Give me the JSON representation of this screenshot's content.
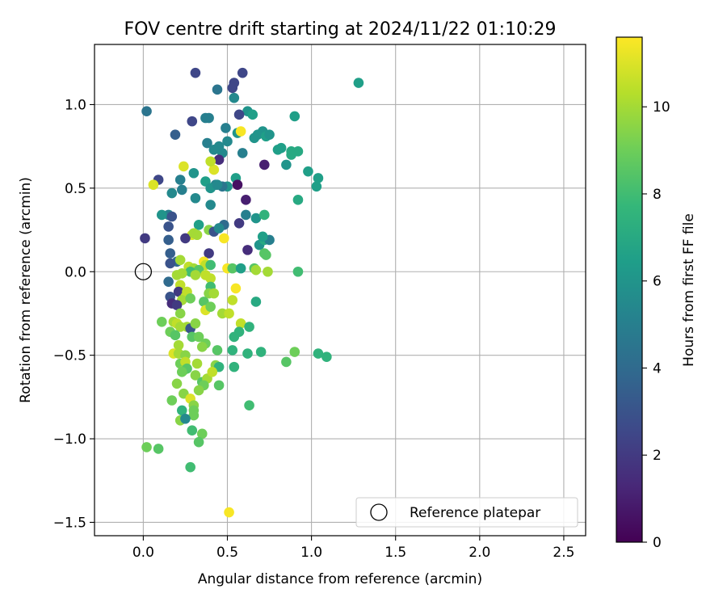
{
  "chart_data": {
    "type": "scatter",
    "title": "FOV centre drift starting at 2024/11/22 01:10:29",
    "xlabel": "Angular distance from reference (arcmin)",
    "ylabel": "Rotation from reference (arcmin)",
    "xlim": [
      -0.29,
      2.63
    ],
    "ylim": [
      -1.58,
      1.36
    ],
    "xticks": [
      0.0,
      0.5,
      1.0,
      1.5,
      2.0,
      2.5
    ],
    "xtick_labels": [
      "0.0",
      "0.5",
      "1.0",
      "1.5",
      "2.0",
      "2.5"
    ],
    "yticks": [
      -1.5,
      -1.0,
      -0.5,
      0.0,
      0.5,
      1.0
    ],
    "ytick_labels": [
      "−1.5",
      "−1.0",
      "−0.5",
      "0.0",
      "0.5",
      "1.0"
    ],
    "grid": true,
    "colormap": "viridis",
    "colorbar": {
      "label": "Hours from first FF file",
      "range": [
        0,
        11.6
      ],
      "ticks": [
        0,
        2,
        4,
        6,
        8,
        10
      ],
      "tick_labels": [
        "0",
        "2",
        "4",
        "6",
        "8",
        "10"
      ],
      "colors": [
        "#440154",
        "#482878",
        "#3e4989",
        "#31688e",
        "#26828e",
        "#1f9e89",
        "#35b779",
        "#6ece58",
        "#b5de2b",
        "#fde725"
      ]
    },
    "legend": {
      "label": "Reference platepar",
      "placement": "lower-right"
    },
    "reference_point": {
      "x": 0.0,
      "y": 0.0
    },
    "points": [
      [
        0.31,
        1.19,
        2.5
      ],
      [
        0.59,
        1.19,
        2.5
      ],
      [
        0.54,
        1.13,
        2.5
      ],
      [
        0.53,
        1.1,
        2.5
      ],
      [
        0.44,
        1.09,
        4.5
      ],
      [
        1.28,
        1.13,
        6.5
      ],
      [
        0.54,
        1.04,
        5.5
      ],
      [
        0.02,
        0.96,
        4.5
      ],
      [
        0.62,
        0.96,
        6.0
      ],
      [
        0.65,
        0.94,
        6.5
      ],
      [
        0.57,
        0.94,
        2.5
      ],
      [
        0.37,
        0.92,
        5.0
      ],
      [
        0.39,
        0.92,
        5.0
      ],
      [
        0.29,
        0.9,
        2.5
      ],
      [
        0.9,
        0.93,
        6.5
      ],
      [
        0.49,
        0.86,
        5.0
      ],
      [
        0.19,
        0.82,
        3.5
      ],
      [
        0.56,
        0.83,
        6.0
      ],
      [
        0.71,
        0.84,
        6.0
      ],
      [
        0.68,
        0.82,
        6.0
      ],
      [
        0.73,
        0.81,
        6.5
      ],
      [
        0.75,
        0.82,
        6.0
      ],
      [
        0.66,
        0.8,
        6.0
      ],
      [
        0.58,
        0.84,
        11.5
      ],
      [
        0.38,
        0.77,
        5.0
      ],
      [
        0.45,
        0.75,
        5.5
      ],
      [
        0.5,
        0.78,
        5.5
      ],
      [
        0.42,
        0.73,
        5.5
      ],
      [
        0.47,
        0.71,
        5.5
      ],
      [
        0.59,
        0.71,
        5.0
      ],
      [
        0.8,
        0.73,
        6.5
      ],
      [
        0.82,
        0.74,
        6.5
      ],
      [
        0.88,
        0.72,
        7.0
      ],
      [
        0.92,
        0.72,
        7.0
      ],
      [
        0.88,
        0.7,
        7.0
      ],
      [
        0.85,
        0.64,
        6.0
      ],
      [
        0.72,
        0.64,
        1.0
      ],
      [
        0.45,
        0.67,
        1.5
      ],
      [
        0.42,
        0.61,
        11.0
      ],
      [
        0.4,
        0.66,
        10.5
      ],
      [
        0.24,
        0.63,
        11.0
      ],
      [
        0.3,
        0.59,
        6.0
      ],
      [
        0.22,
        0.55,
        5.0
      ],
      [
        0.09,
        0.55,
        2.5
      ],
      [
        0.06,
        0.52,
        11.0
      ],
      [
        0.37,
        0.54,
        6.5
      ],
      [
        0.43,
        0.52,
        5.0
      ],
      [
        0.5,
        0.51,
        6.0
      ],
      [
        0.55,
        0.56,
        6.5
      ],
      [
        0.56,
        0.52,
        0.5
      ],
      [
        0.23,
        0.49,
        5.0
      ],
      [
        0.17,
        0.47,
        5.5
      ],
      [
        0.4,
        0.5,
        6.0
      ],
      [
        0.47,
        0.51,
        4.5
      ],
      [
        0.44,
        0.52,
        5.5
      ],
      [
        0.98,
        0.6,
        6.5
      ],
      [
        1.04,
        0.56,
        6.5
      ],
      [
        1.03,
        0.51,
        6.5
      ],
      [
        0.31,
        0.44,
        5.5
      ],
      [
        0.4,
        0.4,
        5.5
      ],
      [
        0.61,
        0.43,
        1.0
      ],
      [
        0.92,
        0.43,
        7.0
      ],
      [
        0.15,
        0.34,
        5.0
      ],
      [
        0.11,
        0.34,
        6.0
      ],
      [
        0.17,
        0.33,
        3.0
      ],
      [
        0.61,
        0.34,
        5.0
      ],
      [
        0.67,
        0.32,
        6.0
      ],
      [
        0.72,
        0.34,
        7.5
      ],
      [
        0.33,
        0.28,
        6.5
      ],
      [
        0.48,
        0.28,
        4.0
      ],
      [
        0.15,
        0.27,
        3.0
      ],
      [
        0.39,
        0.25,
        9.5
      ],
      [
        0.29,
        0.22,
        11.0
      ],
      [
        0.25,
        0.2,
        2.0
      ],
      [
        0.01,
        0.2,
        2.0
      ],
      [
        0.15,
        0.19,
        3.5
      ],
      [
        0.48,
        0.2,
        11.5
      ],
      [
        0.3,
        0.23,
        10.0
      ],
      [
        0.32,
        0.22,
        10.0
      ],
      [
        0.42,
        0.24,
        3.0
      ],
      [
        0.45,
        0.26,
        5.5
      ],
      [
        0.57,
        0.29,
        2.0
      ],
      [
        0.62,
        0.13,
        1.5
      ],
      [
        0.69,
        0.16,
        6.0
      ],
      [
        0.72,
        0.19,
        7.0
      ],
      [
        0.75,
        0.19,
        5.0
      ],
      [
        0.71,
        0.21,
        6.5
      ],
      [
        0.72,
        0.11,
        8.5
      ],
      [
        0.73,
        0.1,
        8.5
      ],
      [
        0.16,
        0.11,
        3.5
      ],
      [
        0.2,
        0.06,
        4.0
      ],
      [
        0.39,
        0.11,
        2.0
      ],
      [
        0.36,
        0.06,
        11.5
      ],
      [
        0.37,
        0.04,
        10.5
      ],
      [
        0.4,
        0.04,
        8.0
      ],
      [
        0.22,
        0.07,
        10.0
      ],
      [
        0.27,
        0.03,
        10.5
      ],
      [
        0.16,
        0.05,
        3.0
      ],
      [
        0.3,
        0.02,
        10.0
      ],
      [
        0.33,
        0.01,
        8.5
      ],
      [
        0.28,
        0.0,
        8.0
      ],
      [
        0.5,
        0.02,
        11.5
      ],
      [
        0.53,
        0.02,
        8.5
      ],
      [
        0.58,
        0.02,
        6.5
      ],
      [
        0.66,
        0.02,
        8.5
      ],
      [
        0.67,
        0.01,
        10.0
      ],
      [
        0.74,
        0.0,
        10.0
      ],
      [
        0.92,
        0.0,
        8.0
      ],
      [
        0.2,
        -0.02,
        10.0
      ],
      [
        0.23,
        -0.01,
        10.0
      ],
      [
        0.31,
        -0.02,
        10.0
      ],
      [
        0.37,
        -0.02,
        10.5
      ],
      [
        0.4,
        -0.04,
        10.5
      ],
      [
        0.15,
        -0.06,
        4.0
      ],
      [
        0.22,
        -0.08,
        10.5
      ],
      [
        0.4,
        -0.09,
        8.0
      ],
      [
        0.55,
        -0.1,
        11.5
      ],
      [
        0.21,
        -0.12,
        2.0
      ],
      [
        0.26,
        -0.12,
        10.5
      ],
      [
        0.39,
        -0.13,
        9.5
      ],
      [
        0.42,
        -0.13,
        10.0
      ],
      [
        0.16,
        -0.15,
        3.0
      ],
      [
        0.25,
        -0.15,
        10.5
      ],
      [
        0.23,
        -0.17,
        10.0
      ],
      [
        0.28,
        -0.16,
        9.0
      ],
      [
        0.36,
        -0.18,
        8.5
      ],
      [
        0.53,
        -0.17,
        10.5
      ],
      [
        0.67,
        -0.18,
        7.0
      ],
      [
        0.17,
        -0.19,
        1.5
      ],
      [
        0.2,
        -0.2,
        2.0
      ],
      [
        0.37,
        -0.23,
        11.0
      ],
      [
        0.47,
        -0.25,
        10.0
      ],
      [
        0.51,
        -0.25,
        10.5
      ],
      [
        0.4,
        -0.21,
        9.0
      ],
      [
        0.22,
        -0.25,
        9.5
      ],
      [
        0.11,
        -0.3,
        9.0
      ],
      [
        0.18,
        -0.3,
        10.0
      ],
      [
        0.2,
        -0.31,
        10.5
      ],
      [
        0.22,
        -0.33,
        10.0
      ],
      [
        0.26,
        -0.33,
        10.0
      ],
      [
        0.28,
        -0.34,
        3.0
      ],
      [
        0.31,
        -0.31,
        9.5
      ],
      [
        0.58,
        -0.31,
        10.5
      ],
      [
        0.57,
        -0.36,
        7.5
      ],
      [
        0.63,
        -0.33,
        7.5
      ],
      [
        0.54,
        -0.39,
        7.5
      ],
      [
        0.16,
        -0.36,
        9.0
      ],
      [
        0.19,
        -0.38,
        8.5
      ],
      [
        0.29,
        -0.39,
        8.5
      ],
      [
        0.33,
        -0.39,
        9.0
      ],
      [
        0.37,
        -0.43,
        9.0
      ],
      [
        0.35,
        -0.45,
        9.5
      ],
      [
        0.44,
        -0.47,
        8.5
      ],
      [
        0.21,
        -0.44,
        10.0
      ],
      [
        0.53,
        -0.47,
        7.5
      ],
      [
        0.62,
        -0.49,
        7.5
      ],
      [
        0.7,
        -0.48,
        7.5
      ],
      [
        0.18,
        -0.49,
        11.0
      ],
      [
        0.21,
        -0.49,
        10.0
      ],
      [
        0.25,
        -0.5,
        9.5
      ],
      [
        0.9,
        -0.48,
        9.0
      ],
      [
        1.04,
        -0.49,
        7.5
      ],
      [
        1.09,
        -0.51,
        7.5
      ],
      [
        0.85,
        -0.54,
        8.5
      ],
      [
        0.22,
        -0.55,
        9.0
      ],
      [
        0.25,
        -0.54,
        10.5
      ],
      [
        0.32,
        -0.55,
        10.0
      ],
      [
        0.43,
        -0.56,
        9.5
      ],
      [
        0.45,
        -0.57,
        7.5
      ],
      [
        0.54,
        -0.57,
        7.5
      ],
      [
        0.24,
        -0.59,
        9.5
      ],
      [
        0.26,
        -0.58,
        8.5
      ],
      [
        0.23,
        -0.6,
        9.0
      ],
      [
        0.31,
        -0.62,
        9.5
      ],
      [
        0.35,
        -0.66,
        8.5
      ],
      [
        0.38,
        -0.64,
        10.0
      ],
      [
        0.41,
        -0.6,
        10.5
      ],
      [
        0.2,
        -0.67,
        9.5
      ],
      [
        0.45,
        -0.68,
        8.5
      ],
      [
        0.36,
        -0.68,
        9.0
      ],
      [
        0.33,
        -0.71,
        9.5
      ],
      [
        0.24,
        -0.73,
        9.5
      ],
      [
        0.28,
        -0.76,
        11.0
      ],
      [
        0.17,
        -0.77,
        9.0
      ],
      [
        0.3,
        -0.8,
        9.5
      ],
      [
        0.63,
        -0.8,
        8.0
      ],
      [
        0.23,
        -0.83,
        7.5
      ],
      [
        0.3,
        -0.83,
        9.0
      ],
      [
        0.3,
        -0.86,
        9.0
      ],
      [
        0.22,
        -0.89,
        9.5
      ],
      [
        0.25,
        -0.88,
        5.5
      ],
      [
        0.29,
        -0.95,
        8.0
      ],
      [
        0.35,
        -0.97,
        9.0
      ],
      [
        0.33,
        -1.02,
        8.5
      ],
      [
        0.02,
        -1.05,
        9.0
      ],
      [
        0.09,
        -1.06,
        8.5
      ],
      [
        0.28,
        -1.17,
        8.0
      ],
      [
        0.51,
        -1.44,
        11.5
      ]
    ]
  }
}
